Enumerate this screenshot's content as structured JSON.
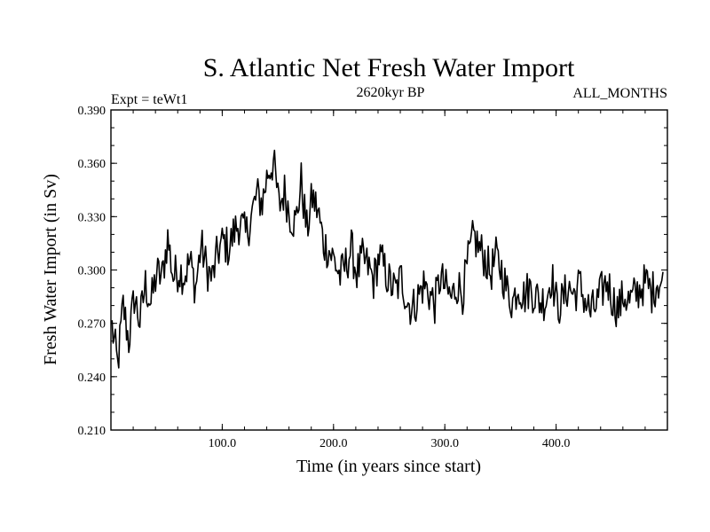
{
  "chart_data": {
    "type": "line",
    "title": "S. Atlantic Net Fresh Water Import",
    "subtitle": "2620kyr BP",
    "left_annotation": "Expt = teWt1",
    "right_annotation": "ALL_MONTHS",
    "xlabel": "Time (in years since start)",
    "ylabel": "Fresh Water Import (in Sv)",
    "xlim": [
      0,
      500
    ],
    "ylim": [
      0.21,
      0.39
    ],
    "x_ticks": [
      100,
      200,
      300,
      400
    ],
    "x_tick_labels": [
      "100.0",
      "200.0",
      "300.0",
      "400.0"
    ],
    "y_ticks": [
      0.21,
      0.24,
      0.27,
      0.3,
      0.33,
      0.36,
      0.39
    ],
    "y_tick_labels": [
      "0.210",
      "0.240",
      "0.270",
      "0.300",
      "0.330",
      "0.360",
      "0.390"
    ],
    "series": [
      {
        "name": "fresh water import",
        "x_start": 1,
        "x_step": 5,
        "values": [
          0.268,
          0.246,
          0.28,
          0.26,
          0.285,
          0.271,
          0.292,
          0.281,
          0.298,
          0.296,
          0.318,
          0.296,
          0.3,
          0.297,
          0.305,
          0.29,
          0.314,
          0.301,
          0.295,
          0.31,
          0.316,
          0.312,
          0.322,
          0.327,
          0.319,
          0.33,
          0.342,
          0.338,
          0.355,
          0.361,
          0.336,
          0.344,
          0.331,
          0.326,
          0.35,
          0.322,
          0.341,
          0.333,
          0.315,
          0.311,
          0.305,
          0.296,
          0.303,
          0.312,
          0.298,
          0.306,
          0.302,
          0.294,
          0.308,
          0.3,
          0.292,
          0.288,
          0.296,
          0.283,
          0.278,
          0.285,
          0.292,
          0.287,
          0.281,
          0.296,
          0.289,
          0.284,
          0.292,
          0.287,
          0.305,
          0.319,
          0.312,
          0.307,
          0.298,
          0.307,
          0.3,
          0.288,
          0.282,
          0.292,
          0.285,
          0.29,
          0.286,
          0.282,
          0.284,
          0.297,
          0.279,
          0.283,
          0.291,
          0.286,
          0.292,
          0.283,
          0.276,
          0.28,
          0.288,
          0.294,
          0.283,
          0.278,
          0.286,
          0.282,
          0.286,
          0.29,
          0.293,
          0.287,
          0.294,
          0.292
        ]
      }
    ]
  }
}
